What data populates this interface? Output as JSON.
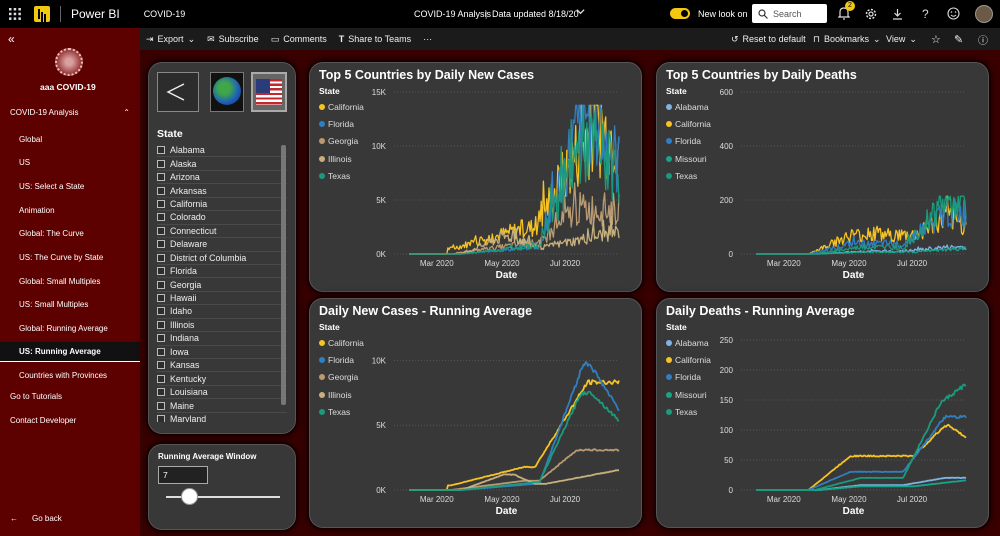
{
  "topbar": {
    "app": "Power BI",
    "report": "COVID-19",
    "center_title": "COVID-19 Analysis",
    "data_updated": "Data updated 8/18/20",
    "new_look": "New look on",
    "search_placeholder": "Search",
    "notif_count": "2"
  },
  "toolbar": {
    "export": "Export",
    "subscribe": "Subscribe",
    "comments": "Comments",
    "share": "Share to Teams",
    "more": "···",
    "reset": "Reset to default",
    "bookmarks": "Bookmarks",
    "view": "View"
  },
  "sidebar": {
    "workspace": "aaa COVID-19",
    "section": "COVID-19 Analysis",
    "pages": [
      "Global",
      "US",
      "US: Select a State",
      "Animation",
      "Global: The Curve",
      "US: The Curve by State",
      "Global: Small Multiples",
      "US: Small Multiples",
      "Global: Running Average",
      "US: Running Average",
      "Countries with Provinces"
    ],
    "active_page": "US: Running Average",
    "tutorials": "Go to Tutorials",
    "contact": "Contact Developer",
    "back": "Go back"
  },
  "slicer": {
    "title": "State",
    "states": [
      "Alabama",
      "Alaska",
      "Arizona",
      "Arkansas",
      "California",
      "Colorado",
      "Connecticut",
      "Delaware",
      "District of Columbia",
      "Florida",
      "Georgia",
      "Hawaii",
      "Idaho",
      "Illinois",
      "Indiana",
      "Iowa",
      "Kansas",
      "Kentucky",
      "Louisiana",
      "Maine",
      "Maryland"
    ]
  },
  "running_avg": {
    "title": "Running Average Window",
    "value": "7",
    "slider_fraction": 0.2
  },
  "colors": {
    "California": "#f6c325",
    "Florida": "#2f7fc1",
    "Georgia": "#b89a73",
    "Illinois": "#c6b07d",
    "Texas": "#1c9a7c",
    "Alabama": "#7eb4e4",
    "Missouri": "#17a589"
  },
  "chart_data": [
    {
      "id": "cases_daily",
      "type": "line",
      "title": "Top 5 Countries by Daily New Cases",
      "legend_title": "State",
      "series": [
        "California",
        "Florida",
        "Georgia",
        "Illinois",
        "Texas"
      ],
      "xlabel": "Date",
      "x_ticks": [
        "Mar 2020",
        "May 2020",
        "Jul 2020"
      ],
      "y_ticks": [
        "0K",
        "5K",
        "10K",
        "15K"
      ],
      "ylim": [
        0,
        15000
      ]
    },
    {
      "id": "deaths_daily",
      "type": "line",
      "title": "Top 5 Countries by Daily Deaths",
      "legend_title": "State",
      "series": [
        "Alabama",
        "California",
        "Florida",
        "Missouri",
        "Texas"
      ],
      "xlabel": "Date",
      "x_ticks": [
        "Mar 2020",
        "May 2020",
        "Jul 2020"
      ],
      "y_ticks": [
        "0",
        "200",
        "400",
        "600"
      ],
      "ylim": [
        0,
        600
      ]
    },
    {
      "id": "cases_avg",
      "type": "line",
      "title": "Daily New Cases - Running Average",
      "legend_title": "State",
      "series": [
        "California",
        "Florida",
        "Georgia",
        "Illinois",
        "Texas"
      ],
      "xlabel": "Date",
      "x_ticks": [
        "Mar 2020",
        "May 2020",
        "Jul 2020"
      ],
      "y_ticks": [
        "0K",
        "5K",
        "10K"
      ],
      "ylim": [
        0,
        12500
      ]
    },
    {
      "id": "deaths_avg",
      "type": "line",
      "title": "Daily Deaths - Running Average",
      "legend_title": "State",
      "series": [
        "Alabama",
        "California",
        "Florida",
        "Missouri",
        "Texas"
      ],
      "xlabel": "Date",
      "x_ticks": [
        "Mar 2020",
        "May 2020",
        "Jul 2020"
      ],
      "y_ticks": [
        "0",
        "50",
        "100",
        "150",
        "200",
        "250"
      ],
      "ylim": [
        0,
        270
      ]
    }
  ]
}
